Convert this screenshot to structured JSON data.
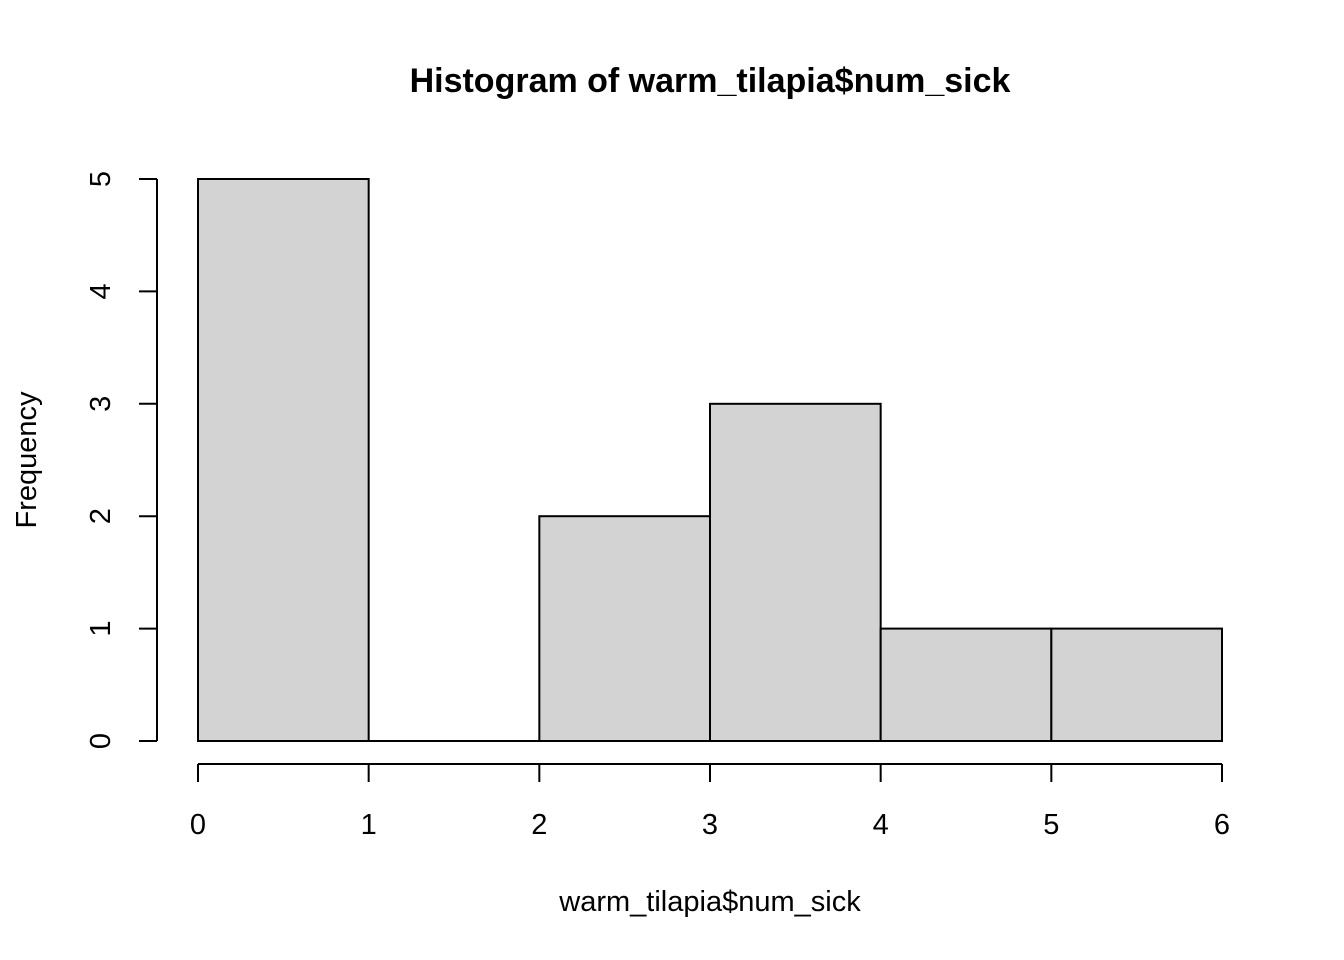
{
  "chart_data": {
    "type": "bar",
    "title": "Histogram of warm_tilapia$num_sick",
    "xlabel": "warm_tilapia$num_sick",
    "ylabel": "Frequency",
    "bins": [
      {
        "start": 0,
        "end": 1,
        "count": 5
      },
      {
        "start": 1,
        "end": 2,
        "count": 0
      },
      {
        "start": 2,
        "end": 3,
        "count": 2
      },
      {
        "start": 3,
        "end": 4,
        "count": 3
      },
      {
        "start": 4,
        "end": 5,
        "count": 1
      },
      {
        "start": 5,
        "end": 6,
        "count": 1
      }
    ],
    "xlim": [
      0,
      6
    ],
    "ylim": [
      0,
      5
    ],
    "x_ticks": [
      "0",
      "1",
      "2",
      "3",
      "4",
      "5",
      "6"
    ],
    "y_ticks": [
      "0",
      "1",
      "2",
      "3",
      "4",
      "5"
    ],
    "bar_color": "#d3d3d3",
    "grid": false
  }
}
